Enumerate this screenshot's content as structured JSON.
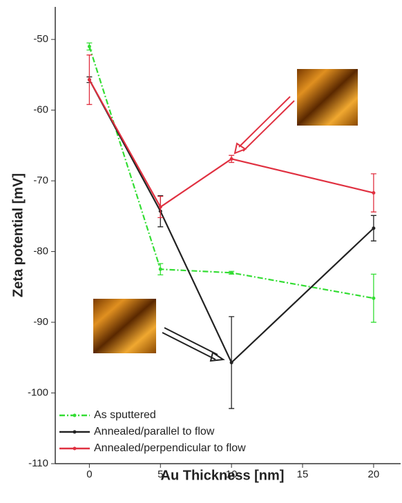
{
  "chart_data": {
    "type": "line",
    "xlabel": "Au Thickness [nm]",
    "ylabel": "Zeta potential [mV]",
    "x": [
      0,
      5,
      10,
      20
    ],
    "series": [
      {
        "name": "As sputtered",
        "color": "#33dd33",
        "dash": "dashdot",
        "values": [
          -51,
          -82.5,
          -83,
          -86.6
        ],
        "errors": [
          0.5,
          0.8,
          0.2,
          3.4
        ]
      },
      {
        "name": "Annealed/parallel to flow",
        "color": "#222222",
        "values": [
          -55.7,
          -74.3,
          -95.7,
          -76.7
        ],
        "errors": [
          0.4,
          2.2,
          6.5,
          1.8
        ]
      },
      {
        "name": "Annealed/perpendicular to flow",
        "color": "#e03040",
        "values": [
          -55.7,
          -73.7,
          -66.9,
          -71.7
        ],
        "errors": [
          3.5,
          1.5,
          0.5,
          2.7
        ]
      }
    ],
    "xlim": [
      -2.4,
      21.9
    ],
    "xticks": [
      0,
      5,
      10,
      15,
      20
    ],
    "ylim": [
      -110,
      -45.4
    ],
    "yticks": [
      -110,
      -100,
      -90,
      -80,
      -70,
      -60,
      -50
    ],
    "legend": "lower left"
  }
}
